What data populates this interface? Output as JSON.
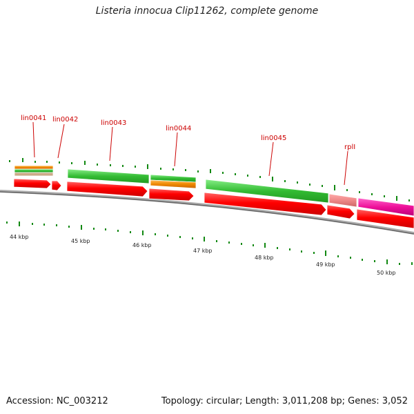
{
  "title": "Listeria innocua Clip11262, complete genome",
  "footer": {
    "accession": "Accession: NC_003212",
    "summary": "Topology: circular; Length: 3,011,208 bp; Genes: 3,052"
  },
  "colors": {
    "cds": "#ee0000",
    "gene_green": "#33bb33",
    "gene_orange": "#ee8800",
    "gene_tan": "#ccaa88",
    "gene_salmon": "#ee8888",
    "gene_magenta": "#ee1199",
    "tick": "#118811",
    "label": "#cc0000",
    "axis": "#777777"
  },
  "gene_labels": [
    "lin0041",
    "lin0042",
    "lin0043",
    "lin0044",
    "lin0045",
    "rplI"
  ],
  "kbp_labels": [
    "44 kbp",
    "45 kbp",
    "46 kbp",
    "47 kbp",
    "48 kbp",
    "49 kbp",
    "50 kbp"
  ]
}
